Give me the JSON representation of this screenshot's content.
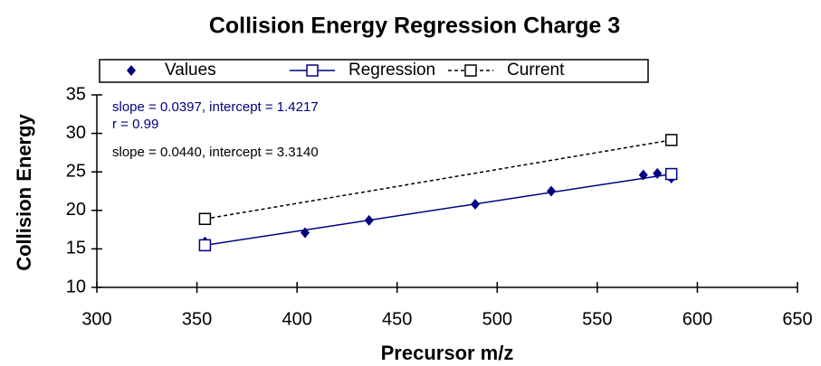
{
  "chart_data": {
    "type": "scatter",
    "title": "Collision Energy Regression Charge 3",
    "xlabel": "Precursor m/z",
    "ylabel": "Collision Energy",
    "xlim": [
      300,
      650
    ],
    "xticks": [
      300,
      350,
      400,
      450,
      500,
      550,
      600,
      650
    ],
    "ylim": [
      10,
      35
    ],
    "yticks": [
      10,
      15,
      20,
      25,
      30,
      35
    ],
    "annotations": [
      {
        "text": "slope = 0.0397, intercept = 1.4217",
        "color": "#000080"
      },
      {
        "text": "r = 0.99",
        "color": "#000080"
      },
      {
        "text": "slope = 0.0440, intercept = 3.3140",
        "color": "#000000"
      }
    ],
    "series": [
      {
        "name": "Values",
        "color": "#000080",
        "style": "points",
        "x": [
          354,
          404,
          436,
          489,
          527,
          573,
          580,
          587
        ],
        "values": [
          15.9,
          17.1,
          18.7,
          20.8,
          22.5,
          24.6,
          24.8,
          24.2
        ]
      },
      {
        "name": "Regression",
        "color": "#000080",
        "style": "line",
        "x": [
          354,
          587
        ],
        "values": [
          15.47,
          24.72
        ]
      },
      {
        "name": "Current",
        "color": "#000000",
        "style": "dashed",
        "x": [
          354,
          587
        ],
        "values": [
          18.89,
          29.14
        ]
      }
    ]
  }
}
